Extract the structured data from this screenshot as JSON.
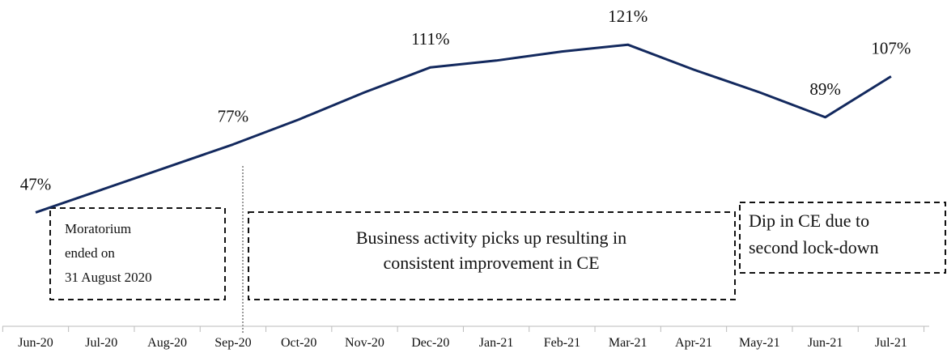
{
  "chart_data": {
    "type": "line",
    "categories": [
      "Jun-20",
      "Jul-20",
      "Aug-20",
      "Sep-20",
      "Oct-20",
      "Nov-20",
      "Dec-20",
      "Jan-21",
      "Feb-21",
      "Mar-21",
      "Apr-21",
      "May-21",
      "Jun-21",
      "Jul-21"
    ],
    "series": [
      {
        "color": "#13295e",
        "values": [
          47,
          57,
          67,
          77,
          88,
          100,
          111,
          114,
          118,
          121,
          110,
          100,
          89,
          107
        ],
        "value_labels": [
          "47%",
          null,
          null,
          "77%",
          null,
          null,
          "111%",
          null,
          null,
          "121%",
          null,
          null,
          "89%",
          "107%"
        ]
      }
    ],
    "ylim": [
      0,
      140
    ],
    "annotations": [
      [
        "Moratorium",
        "ended on",
        "31 August 2020"
      ],
      [
        "Business activity picks up resulting in",
        "consistent improvement in CE"
      ],
      [
        "Dip in CE due to",
        "second lock-down"
      ]
    ]
  }
}
